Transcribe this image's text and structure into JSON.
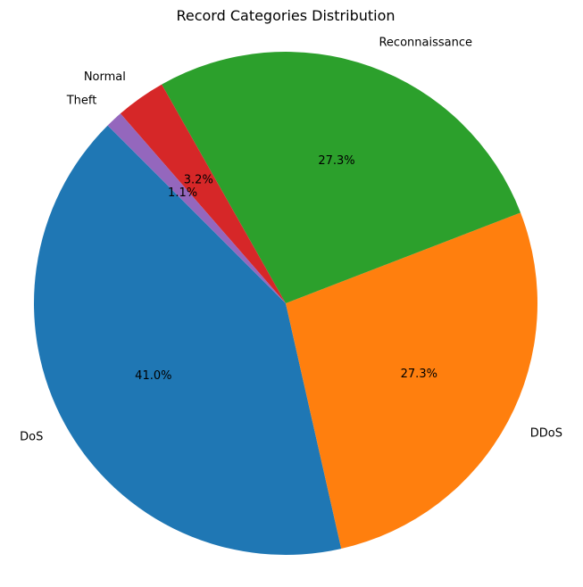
{
  "chart_data": {
    "type": "pie",
    "title": "Record Categories Distribution",
    "start_angle_deg": 135,
    "direction": "counterclockwise",
    "slices": [
      {
        "label": "DoS",
        "value": 41.0,
        "pct_label": "41.0%",
        "color": "#1f77b4"
      },
      {
        "label": "DDoS",
        "value": 27.3,
        "pct_label": "27.3%",
        "color": "#ff7f0e"
      },
      {
        "label": "Reconnaissance",
        "value": 27.3,
        "pct_label": "27.3%",
        "color": "#2ca02c"
      },
      {
        "label": "Normal",
        "value": 3.2,
        "pct_label": "3.2%",
        "color": "#d62728"
      },
      {
        "label": "Theft",
        "value": 1.1,
        "pct_label": "1.1%",
        "color": "#9467bd"
      }
    ]
  }
}
